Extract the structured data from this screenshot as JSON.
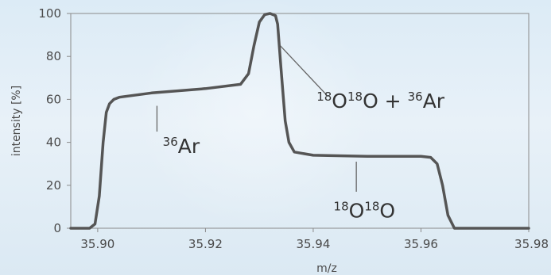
{
  "chart_data": {
    "type": "line",
    "title": "",
    "xlabel": "m/z",
    "ylabel": "intensity [%]",
    "xlim": [
      35.895,
      35.98
    ],
    "ylim": [
      0,
      100
    ],
    "x_ticks": [
      "35.90",
      "35.92",
      "35.94",
      "35.96",
      "35.98"
    ],
    "y_ticks": [
      "0",
      "20",
      "40",
      "60",
      "80",
      "100"
    ],
    "grid": false,
    "legend": "none",
    "series": [
      {
        "color": "#555555",
        "x": [
          35.895,
          35.8985,
          35.8995,
          35.9003,
          35.901,
          35.9016,
          35.9022,
          35.903,
          35.904,
          35.91,
          35.92,
          35.9265,
          35.928,
          35.929,
          35.93,
          35.931,
          35.932,
          35.933,
          35.9334,
          35.934,
          35.9348,
          35.9355,
          35.9365,
          35.94,
          35.95,
          35.96,
          35.9618,
          35.963,
          35.964,
          35.965,
          35.9662,
          35.968,
          35.98
        ],
        "y": [
          0,
          0,
          2,
          15,
          40,
          54,
          58,
          60,
          61,
          63,
          65,
          67,
          72,
          85,
          96,
          99.5,
          100,
          99,
          95,
          75,
          50,
          40,
          35.5,
          34,
          33.5,
          33.5,
          33,
          30,
          20,
          6,
          0,
          0,
          0
        ]
      }
    ],
    "annotations": [
      {
        "parts": [
          {
            "sup": "36"
          },
          {
            "text": "Ar"
          }
        ],
        "x": 35.9155,
        "y": 35,
        "pointer": {
          "x": 35.911,
          "from_y": 57,
          "to_y": 45
        }
      },
      {
        "parts": [
          {
            "sup": "18"
          },
          {
            "text": "O"
          },
          {
            "sup": "18"
          },
          {
            "text": "O + "
          },
          {
            "sup": "36"
          },
          {
            "text": "Ar"
          }
        ],
        "x": 35.9525,
        "y": 56,
        "pointer": {
          "x1": 35.9335,
          "y1": 86,
          "x2": 35.9425,
          "y2": 62
        }
      },
      {
        "parts": [
          {
            "sup": "18"
          },
          {
            "text": "O"
          },
          {
            "sup": "18"
          },
          {
            "text": "O"
          }
        ],
        "x": 35.9495,
        "y": 5,
        "pointer": {
          "x": 35.948,
          "from_y": 31,
          "to_y": 17
        }
      }
    ]
  }
}
